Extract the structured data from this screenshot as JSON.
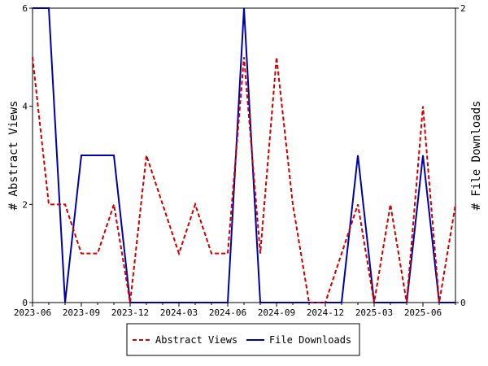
{
  "chart_data": {
    "type": "line",
    "x": [
      "2023-06",
      "2023-07",
      "2023-08",
      "2023-09",
      "2023-10",
      "2023-11",
      "2023-12",
      "2024-01",
      "2024-02",
      "2024-03",
      "2024-04",
      "2024-05",
      "2024-06",
      "2024-07",
      "2024-08",
      "2024-09",
      "2024-10",
      "2024-11",
      "2024-12",
      "2025-01",
      "2025-02",
      "2025-03",
      "2025-04",
      "2025-05",
      "2025-06",
      "2025-07",
      "2025-08"
    ],
    "x_tick_labels": [
      "2023-06",
      "2023-09",
      "2023-12",
      "2024-03",
      "2024-06",
      "2024-09",
      "2024-12",
      "2025-03",
      "2025-06"
    ],
    "ylabel_left": "# Abstract Views",
    "ylabel_right": "# File Downloads",
    "ylim_left": [
      0,
      6
    ],
    "ylim_right": [
      0,
      2
    ],
    "yticks_left": [
      "0",
      "2",
      "4",
      "6"
    ],
    "yticks_right": [
      "0",
      "2"
    ],
    "grid": false,
    "legend_position": "bottom-center",
    "series": [
      {
        "name": "Abstract Views",
        "axis": "left",
        "color": "#cc0000",
        "style": "dashed",
        "values": [
          5,
          2,
          2,
          1,
          1,
          2,
          0,
          3,
          2,
          1,
          2,
          1,
          1,
          5,
          1,
          5,
          2,
          0,
          0,
          1,
          2,
          0,
          2,
          0,
          4,
          0,
          2
        ]
      },
      {
        "name": "File Downloads",
        "axis": "right",
        "color": "#0000aa",
        "style": "solid",
        "values": [
          2,
          2,
          0,
          1,
          1,
          1,
          0,
          0,
          0,
          0,
          0,
          0,
          0,
          2,
          0,
          0,
          0,
          0,
          0,
          0,
          1,
          0,
          0,
          0,
          1,
          0,
          0
        ]
      }
    ]
  }
}
